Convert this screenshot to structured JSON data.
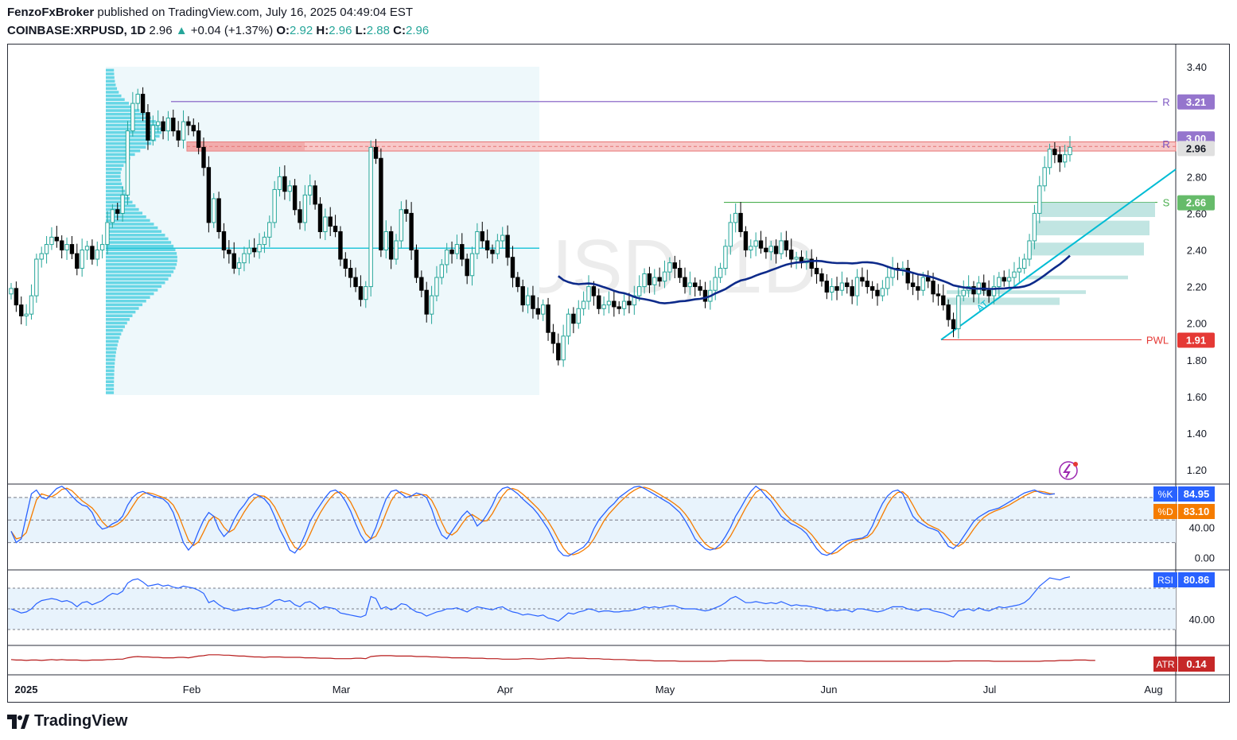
{
  "header": {
    "author": "FenzoFxBroker",
    "published": "published on TradingView.com, July 16, 2025 04:49:04 EST",
    "symbol": "COINBASE:XRPUSD, 1D",
    "price": "2.96",
    "change": "+0.04 (+1.37%)",
    "o_label": "O:",
    "o": "2.92",
    "h_label": "H:",
    "h": "2.96",
    "l_label": "L:",
    "l": "2.88",
    "c_label": "C:",
    "c": "2.96"
  },
  "watermark": "XRPUSD, 1D",
  "footer": {
    "brand": "TradingView"
  },
  "colors": {
    "up": "#26a69a",
    "down": "#000000",
    "ma": "#0d2a8a",
    "resistance": "#7e57c2",
    "support": "#4caf50",
    "pwl": "#e53935",
    "trend": "#00bcd4",
    "k": "#2962ff",
    "d": "#f57c00",
    "rsi": "#2962ff",
    "atr": "#b71c1c"
  },
  "chart_data": [
    {
      "type": "candlestick",
      "ylim": [
        1.1,
        3.52
      ],
      "y_ticks": [
        "3.40",
        "2.80",
        "2.60",
        "2.40",
        "2.20",
        "2.00",
        "1.80",
        "1.60",
        "1.40",
        "1.20"
      ],
      "x_ticks": [
        "2025",
        "Feb",
        "Mar",
        "Apr",
        "May",
        "Jun",
        "Jul",
        "Aug"
      ],
      "levels": [
        {
          "label": "R",
          "value": "3.21"
        },
        {
          "label": "R",
          "value": "3.00"
        },
        {
          "label": "S",
          "value": "2.66"
        },
        {
          "label": "PWL",
          "value": "1.91"
        }
      ],
      "current_price": "2.96",
      "resistance_zone": [
        2.94,
        2.99
      ],
      "trendline_label": "AT",
      "volume_profile_poc": 2.41,
      "closes": [
        2.19,
        2.1,
        2.04,
        2.05,
        2.15,
        2.35,
        2.38,
        2.43,
        2.47,
        2.45,
        2.4,
        2.43,
        2.38,
        2.3,
        2.4,
        2.42,
        2.35,
        2.4,
        2.43,
        2.55,
        2.62,
        2.6,
        2.7,
        3.05,
        3.2,
        3.25,
        3.15,
        3.0,
        3.08,
        3.1,
        3.05,
        3.12,
        3.05,
        3.0,
        3.1,
        3.08,
        3.05,
        2.96,
        2.85,
        2.55,
        2.68,
        2.5,
        2.4,
        2.38,
        2.3,
        2.33,
        2.38,
        2.41,
        2.39,
        2.43,
        2.47,
        2.55,
        2.73,
        2.8,
        2.72,
        2.75,
        2.62,
        2.55,
        2.7,
        2.75,
        2.65,
        2.5,
        2.58,
        2.53,
        2.5,
        2.35,
        2.3,
        2.25,
        2.2,
        2.13,
        2.2,
        2.96,
        2.9,
        2.4,
        2.5,
        2.35,
        2.45,
        2.62,
        2.6,
        2.4,
        2.25,
        2.18,
        2.05,
        2.15,
        2.25,
        2.32,
        2.4,
        2.38,
        2.43,
        2.35,
        2.26,
        2.38,
        2.5,
        2.45,
        2.4,
        2.38,
        2.45,
        2.48,
        2.36,
        2.25,
        2.2,
        2.1,
        2.15,
        2.08,
        2.05,
        2.1,
        1.95,
        1.89,
        1.8,
        1.93,
        2.05,
        2.0,
        2.08,
        2.12,
        2.2,
        2.15,
        2.08,
        2.1,
        2.12,
        2.09,
        2.08,
        2.12,
        2.1,
        2.15,
        2.2,
        2.27,
        2.21,
        2.25,
        2.23,
        2.28,
        2.33,
        2.3,
        2.25,
        2.2,
        2.22,
        2.2,
        2.18,
        2.12,
        2.18,
        2.25,
        2.3,
        2.42,
        2.55,
        2.6,
        2.5,
        2.4,
        2.42,
        2.45,
        2.41,
        2.39,
        2.42,
        2.38,
        2.45,
        2.4,
        2.35,
        2.36,
        2.33,
        2.35,
        2.3,
        2.27,
        2.23,
        2.17,
        2.2,
        2.18,
        2.22,
        2.2,
        2.15,
        2.25,
        2.23,
        2.2,
        2.18,
        2.15,
        2.19,
        2.25,
        2.3,
        2.29,
        2.3,
        2.22,
        2.2,
        2.18,
        2.25,
        2.23,
        2.16,
        2.15,
        2.1,
        2.02,
        1.97,
        2.15,
        2.18,
        2.2,
        2.16,
        2.22,
        2.18,
        2.15,
        2.2,
        2.25,
        2.23,
        2.25,
        2.28,
        2.3,
        2.35,
        2.45,
        2.6,
        2.75,
        2.85,
        2.95,
        2.92,
        2.88,
        2.92,
        2.96
      ]
    },
    {
      "type": "line",
      "name": "Stochastic",
      "y_ticks": [
        "40.00",
        "0.00"
      ],
      "series": [
        {
          "name": "%K",
          "value": "84.95"
        },
        {
          "name": "%D",
          "value": "83.10"
        }
      ],
      "k": [
        35,
        20,
        25,
        55,
        85,
        90,
        80,
        78,
        85,
        92,
        95,
        90,
        82,
        75,
        70,
        68,
        60,
        45,
        38,
        40,
        45,
        48,
        55,
        70,
        80,
        86,
        88,
        85,
        82,
        80,
        78,
        72,
        60,
        40,
        20,
        10,
        18,
        35,
        50,
        60,
        55,
        38,
        28,
        35,
        50,
        62,
        70,
        80,
        85,
        82,
        78,
        70,
        55,
        38,
        25,
        10,
        6,
        15,
        30,
        48,
        60,
        70,
        80,
        88,
        90,
        85,
        75,
        62,
        45,
        30,
        20,
        25,
        40,
        60,
        78,
        88,
        90,
        85,
        80,
        82,
        86,
        84,
        80,
        65,
        45,
        30,
        25,
        35,
        45,
        55,
        62,
        55,
        42,
        48,
        58,
        70,
        85,
        92,
        94,
        90,
        85,
        78,
        72,
        66,
        58,
        48,
        38,
        25,
        10,
        3,
        2,
        6,
        10,
        14,
        22,
        38,
        50,
        58,
        66,
        72,
        80,
        85,
        90,
        94,
        95,
        92,
        88,
        84,
        80,
        76,
        72,
        66,
        60,
        50,
        38,
        25,
        18,
        12,
        10,
        12,
        18,
        28,
        40,
        55,
        66,
        78,
        88,
        95,
        90,
        82,
        75,
        65,
        55,
        50,
        45,
        42,
        38,
        32,
        22,
        12,
        5,
        3,
        6,
        12,
        18,
        22,
        24,
        25,
        26,
        30,
        42,
        58,
        72,
        82,
        88,
        90,
        85,
        70,
        55,
        48,
        44,
        40,
        38,
        35,
        25,
        15,
        12,
        18,
        28,
        38,
        48,
        54,
        58,
        62,
        64,
        66,
        70,
        74,
        78,
        82,
        86,
        88,
        90,
        87,
        85,
        84,
        85
      ]
    },
    {
      "type": "line",
      "name": "RSI",
      "y_ticks": [
        "40.00"
      ],
      "series": [
        {
          "name": "RSI",
          "value": "80.86"
        }
      ],
      "values": [
        50,
        48,
        46,
        47,
        50,
        55,
        58,
        59,
        60,
        59,
        57,
        58,
        56,
        52,
        56,
        57,
        54,
        56,
        58,
        62,
        65,
        64,
        67,
        75,
        78,
        79,
        76,
        72,
        73,
        74,
        72,
        73,
        71,
        70,
        72,
        71,
        70,
        68,
        65,
        56,
        58,
        54,
        51,
        50,
        48,
        49,
        50,
        51,
        50,
        51,
        52,
        54,
        58,
        59,
        57,
        58,
        54,
        52,
        56,
        57,
        54,
        50,
        52,
        51,
        50,
        46,
        45,
        44,
        43,
        42,
        44,
        62,
        60,
        50,
        52,
        49,
        51,
        55,
        54,
        50,
        47,
        46,
        43,
        45,
        47,
        48,
        50,
        50,
        51,
        49,
        47,
        50,
        52,
        51,
        50,
        49,
        51,
        52,
        49,
        47,
        46,
        44,
        45,
        44,
        43,
        44,
        41,
        40,
        38,
        42,
        46,
        45,
        47,
        48,
        50,
        49,
        47,
        48,
        48,
        47,
        47,
        48,
        48,
        49,
        50,
        52,
        51,
        52,
        51,
        52,
        53,
        53,
        51,
        50,
        50,
        50,
        49,
        48,
        49,
        51,
        53,
        56,
        60,
        62,
        59,
        56,
        56,
        57,
        56,
        55,
        56,
        55,
        57,
        55,
        53,
        54,
        53,
        53,
        52,
        51,
        50,
        48,
        49,
        48,
        49,
        49,
        47,
        50,
        50,
        49,
        48,
        47,
        48,
        50,
        52,
        52,
        52,
        50,
        49,
        48,
        50,
        50,
        48,
        47,
        46,
        44,
        42,
        48,
        49,
        50,
        48,
        51,
        49,
        48,
        50,
        52,
        51,
        52,
        53,
        54,
        56,
        60,
        66,
        72,
        76,
        80,
        79,
        78,
        80,
        81
      ]
    },
    {
      "type": "line",
      "name": "ATR",
      "series": [
        {
          "name": "ATR",
          "value": "0.14"
        }
      ],
      "values": [
        0.16,
        0.15,
        0.15,
        0.14,
        0.15,
        0.15,
        0.14,
        0.15,
        0.16,
        0.15,
        0.16,
        0.15,
        0.15,
        0.15,
        0.14,
        0.14,
        0.15,
        0.15,
        0.15,
        0.16,
        0.16,
        0.17,
        0.17,
        0.2,
        0.22,
        0.23,
        0.22,
        0.22,
        0.21,
        0.21,
        0.2,
        0.2,
        0.2,
        0.21,
        0.21,
        0.2,
        0.22,
        0.24,
        0.25,
        0.27,
        0.27,
        0.27,
        0.26,
        0.26,
        0.25,
        0.24,
        0.24,
        0.23,
        0.22,
        0.22,
        0.21,
        0.22,
        0.22,
        0.22,
        0.21,
        0.21,
        0.21,
        0.21,
        0.2,
        0.2,
        0.2,
        0.19,
        0.19,
        0.19,
        0.18,
        0.18,
        0.18,
        0.18,
        0.19,
        0.19,
        0.18,
        0.23,
        0.24,
        0.25,
        0.25,
        0.25,
        0.24,
        0.24,
        0.24,
        0.24,
        0.23,
        0.23,
        0.23,
        0.22,
        0.22,
        0.21,
        0.21,
        0.2,
        0.2,
        0.2,
        0.2,
        0.19,
        0.19,
        0.19,
        0.18,
        0.18,
        0.18,
        0.17,
        0.17,
        0.17,
        0.17,
        0.18,
        0.18,
        0.18,
        0.17,
        0.17,
        0.18,
        0.18,
        0.19,
        0.19,
        0.2,
        0.19,
        0.19,
        0.19,
        0.18,
        0.18,
        0.18,
        0.17,
        0.17,
        0.16,
        0.16,
        0.16,
        0.15,
        0.15,
        0.14,
        0.14,
        0.14,
        0.13,
        0.13,
        0.13,
        0.13,
        0.13,
        0.12,
        0.12,
        0.12,
        0.12,
        0.12,
        0.12,
        0.12,
        0.12,
        0.13,
        0.13,
        0.14,
        0.14,
        0.14,
        0.14,
        0.14,
        0.14,
        0.14,
        0.13,
        0.13,
        0.13,
        0.13,
        0.13,
        0.13,
        0.13,
        0.13,
        0.12,
        0.12,
        0.12,
        0.12,
        0.12,
        0.12,
        0.12,
        0.12,
        0.12,
        0.12,
        0.12,
        0.12,
        0.12,
        0.12,
        0.12,
        0.12,
        0.12,
        0.12,
        0.12,
        0.12,
        0.12,
        0.12,
        0.12,
        0.12,
        0.12,
        0.12,
        0.12,
        0.12,
        0.12,
        0.13,
        0.13,
        0.13,
        0.13,
        0.13,
        0.13,
        0.13,
        0.13,
        0.12,
        0.12,
        0.12,
        0.12,
        0.12,
        0.12,
        0.12,
        0.12,
        0.12,
        0.12,
        0.13,
        0.13,
        0.13,
        0.14,
        0.14,
        0.14,
        0.15,
        0.15,
        0.15,
        0.14,
        0.14
      ]
    }
  ]
}
